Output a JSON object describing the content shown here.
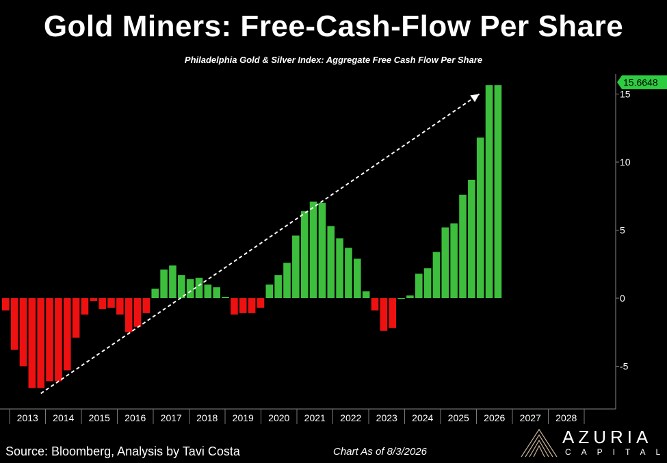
{
  "title": "Gold Miners: Free-Cash-Flow Per Share",
  "subtitle": "Philadelphia Gold & Silver Index: Aggregate Free Cash Flow Per Share",
  "footer": {
    "source": "Source: Bloomberg, Analysis by Tavi Costa",
    "as_of": "Chart As of 8/3/2026"
  },
  "logo": {
    "name": "AZURIA",
    "sub": "CAPITAL",
    "icon": "mountain-icon"
  },
  "colors": {
    "positive": "#3dbe3d",
    "negative": "#ee1111",
    "background": "#000000",
    "badge": "#2ecc40"
  },
  "chart_data": {
    "type": "bar",
    "last_value_label": "15.6648",
    "ylim": [
      -8,
      16
    ],
    "yticks": [
      -5,
      0,
      5,
      10,
      15
    ],
    "x_labels": [
      "2013",
      "2014",
      "2015",
      "2016",
      "2017",
      "2018",
      "2019",
      "2020",
      "2021",
      "2022",
      "2023",
      "2024",
      "2025",
      "2026",
      "2027",
      "2028"
    ],
    "trend_arrow": {
      "from": {
        "index": 4,
        "value": -7
      },
      "to": {
        "index": 56,
        "value": 15
      }
    },
    "values": [
      -0.9,
      -3.8,
      -5.0,
      -6.6,
      -6.6,
      -6.1,
      -6.1,
      -5.3,
      -2.9,
      -1.2,
      -0.2,
      -0.8,
      -0.7,
      -1.2,
      -2.5,
      -2.1,
      -1.1,
      0.7,
      2.1,
      2.4,
      1.7,
      1.4,
      1.5,
      1.0,
      0.8,
      0.1,
      -1.2,
      -1.1,
      -1.1,
      -0.7,
      1.0,
      1.7,
      2.6,
      4.6,
      6.4,
      7.1,
      7.0,
      5.3,
      4.4,
      3.7,
      2.9,
      0.5,
      -0.9,
      -2.4,
      -2.2,
      0.0,
      0.2,
      1.8,
      2.2,
      3.4,
      5.2,
      5.5,
      7.6,
      8.7,
      11.8,
      15.6648,
      15.6648
    ]
  }
}
